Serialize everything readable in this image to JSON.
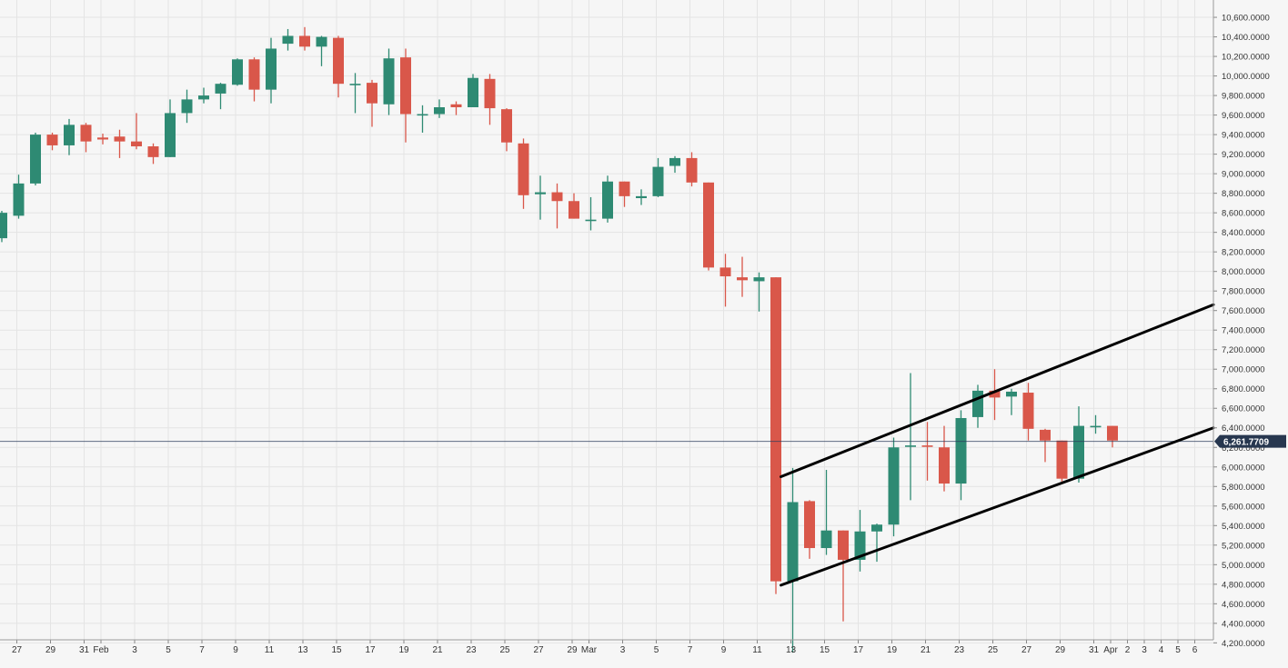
{
  "colors": {
    "background": "#f6f6f6",
    "grid": "#e4e4e4",
    "axis_text": "#333333",
    "up": "#2e8a73",
    "down": "#d9574a",
    "price_line": "#2c3e5c",
    "price_label_bg": "#27374f",
    "price_label_text": "#ffffff",
    "trendline": "#000000"
  },
  "chart_data": {
    "type": "candlestick",
    "y_ticks": [
      "4,200.0000",
      "4,400.0000",
      "4,600.0000",
      "4,800.0000",
      "5,000.0000",
      "5,200.0000",
      "5,400.0000",
      "5,600.0000",
      "5,800.0000",
      "6,000.0000",
      "6,200.0000",
      "6,400.0000",
      "6,600.0000",
      "6,800.0000",
      "7,000.0000",
      "7,200.0000",
      "7,400.0000",
      "7,600.0000",
      "7,800.0000",
      "8,000.0000",
      "8,200.0000",
      "8,400.0000",
      "8,600.0000",
      "8,800.0000",
      "9,000.0000",
      "9,200.0000",
      "9,400.0000",
      "9,600.0000",
      "9,800.0000",
      "10,000.0000",
      "10,200.0000",
      "10,400.0000",
      "10,600.0000"
    ],
    "ylim": [
      4180,
      10740
    ],
    "y_tick_values": [
      4200,
      4400,
      4600,
      4800,
      5000,
      5200,
      5400,
      5600,
      5800,
      6000,
      6200,
      6400,
      6600,
      6800,
      7000,
      7200,
      7400,
      7600,
      7800,
      8000,
      8200,
      8400,
      8600,
      8800,
      9000,
      9200,
      9400,
      9600,
      9800,
      10000,
      10200,
      10400,
      10600
    ],
    "x_labels": [
      "27",
      "29",
      "31",
      "Feb",
      "3",
      "5",
      "7",
      "9",
      "11",
      "13",
      "15",
      "17",
      "19",
      "21",
      "23",
      "25",
      "27",
      "29",
      "Mar",
      "3",
      "5",
      "7",
      "9",
      "11",
      "13",
      "15",
      "17",
      "19",
      "21",
      "23",
      "25",
      "27",
      "29",
      "31",
      "Apr",
      "2",
      "3",
      "4",
      "5",
      "6"
    ],
    "x_label_slots": [
      0,
      2,
      4,
      5,
      7,
      9,
      11,
      13,
      15,
      17,
      19,
      21,
      23,
      25,
      27,
      29,
      31,
      33,
      34,
      36,
      38,
      40,
      42,
      44,
      46,
      48,
      50,
      52,
      54,
      56,
      58,
      60,
      62,
      64,
      65,
      66,
      67,
      68,
      69,
      70
    ],
    "current_price": 6261.7709,
    "current_price_label": "6,261.7709",
    "candles": [
      {
        "o": 8340,
        "h": 8620,
        "l": 8300,
        "c": 8600
      },
      {
        "o": 8570,
        "h": 8990,
        "l": 8540,
        "c": 8900
      },
      {
        "o": 8900,
        "h": 9420,
        "l": 8880,
        "c": 9400
      },
      {
        "o": 9400,
        "h": 9420,
        "l": 9240,
        "c": 9290
      },
      {
        "o": 9290,
        "h": 9560,
        "l": 9190,
        "c": 9500
      },
      {
        "o": 9500,
        "h": 9520,
        "l": 9220,
        "c": 9330
      },
      {
        "o": 9370,
        "h": 9410,
        "l": 9300,
        "c": 9350
      },
      {
        "o": 9380,
        "h": 9450,
        "l": 9160,
        "c": 9330
      },
      {
        "o": 9330,
        "h": 9620,
        "l": 9250,
        "c": 9280
      },
      {
        "o": 9280,
        "h": 9310,
        "l": 9100,
        "c": 9170
      },
      {
        "o": 9170,
        "h": 9760,
        "l": 9170,
        "c": 9620
      },
      {
        "o": 9620,
        "h": 9860,
        "l": 9520,
        "c": 9760
      },
      {
        "o": 9760,
        "h": 9880,
        "l": 9720,
        "c": 9800
      },
      {
        "o": 9820,
        "h": 9930,
        "l": 9660,
        "c": 9920
      },
      {
        "o": 9910,
        "h": 10180,
        "l": 9900,
        "c": 10170
      },
      {
        "o": 10170,
        "h": 10190,
        "l": 9740,
        "c": 9860
      },
      {
        "o": 9860,
        "h": 10390,
        "l": 9720,
        "c": 10280
      },
      {
        "o": 10330,
        "h": 10480,
        "l": 10260,
        "c": 10410
      },
      {
        "o": 10410,
        "h": 10500,
        "l": 10260,
        "c": 10300
      },
      {
        "o": 10300,
        "h": 10410,
        "l": 10100,
        "c": 10400
      },
      {
        "o": 10390,
        "h": 10410,
        "l": 9780,
        "c": 9920
      },
      {
        "o": 9920,
        "h": 10030,
        "l": 9620,
        "c": 9920
      },
      {
        "o": 9930,
        "h": 9960,
        "l": 9480,
        "c": 9720
      },
      {
        "o": 9710,
        "h": 10280,
        "l": 9600,
        "c": 10180
      },
      {
        "o": 10190,
        "h": 10280,
        "l": 9320,
        "c": 9610
      },
      {
        "o": 9610,
        "h": 9700,
        "l": 9420,
        "c": 9610
      },
      {
        "o": 9610,
        "h": 9760,
        "l": 9570,
        "c": 9680
      },
      {
        "o": 9710,
        "h": 9740,
        "l": 9600,
        "c": 9680
      },
      {
        "o": 9680,
        "h": 10020,
        "l": 9680,
        "c": 9980
      },
      {
        "o": 9970,
        "h": 10020,
        "l": 9500,
        "c": 9670
      },
      {
        "o": 9660,
        "h": 9670,
        "l": 9230,
        "c": 9320
      },
      {
        "o": 9310,
        "h": 9360,
        "l": 8640,
        "c": 8780
      },
      {
        "o": 8790,
        "h": 8980,
        "l": 8530,
        "c": 8810
      },
      {
        "o": 8810,
        "h": 8900,
        "l": 8440,
        "c": 8720
      },
      {
        "o": 8720,
        "h": 8800,
        "l": 8540,
        "c": 8540
      },
      {
        "o": 8530,
        "h": 8760,
        "l": 8420,
        "c": 8530
      },
      {
        "o": 8540,
        "h": 8980,
        "l": 8500,
        "c": 8920
      },
      {
        "o": 8920,
        "h": 8920,
        "l": 8660,
        "c": 8770
      },
      {
        "o": 8750,
        "h": 8840,
        "l": 8680,
        "c": 8770
      },
      {
        "o": 8770,
        "h": 9160,
        "l": 8760,
        "c": 9070
      },
      {
        "o": 9080,
        "h": 9180,
        "l": 9010,
        "c": 9160
      },
      {
        "o": 9160,
        "h": 9220,
        "l": 8870,
        "c": 8910
      },
      {
        "o": 8910,
        "h": 8910,
        "l": 8010,
        "c": 8040
      },
      {
        "o": 8040,
        "h": 8180,
        "l": 7640,
        "c": 7950
      },
      {
        "o": 7940,
        "h": 8150,
        "l": 7740,
        "c": 7910
      },
      {
        "o": 7900,
        "h": 7990,
        "l": 7590,
        "c": 7940
      },
      {
        "o": 7940,
        "h": 7940,
        "l": 4700,
        "c": 4830
      },
      {
        "o": 4830,
        "h": 5990,
        "l": 4100,
        "c": 5640
      },
      {
        "o": 5650,
        "h": 5660,
        "l": 5060,
        "c": 5170
      },
      {
        "o": 5170,
        "h": 5970,
        "l": 5100,
        "c": 5350
      },
      {
        "o": 5350,
        "h": 5350,
        "l": 4420,
        "c": 5050
      },
      {
        "o": 5050,
        "h": 5560,
        "l": 4930,
        "c": 5340
      },
      {
        "o": 5340,
        "h": 5420,
        "l": 5030,
        "c": 5410
      },
      {
        "o": 5410,
        "h": 6300,
        "l": 5290,
        "c": 6200
      },
      {
        "o": 6210,
        "h": 6960,
        "l": 5660,
        "c": 6220
      },
      {
        "o": 6220,
        "h": 6460,
        "l": 5860,
        "c": 6210
      },
      {
        "o": 6200,
        "h": 6420,
        "l": 5750,
        "c": 5830
      },
      {
        "o": 5830,
        "h": 6580,
        "l": 5660,
        "c": 6500
      },
      {
        "o": 6510,
        "h": 6840,
        "l": 6400,
        "c": 6780
      },
      {
        "o": 6780,
        "h": 7000,
        "l": 6480,
        "c": 6710
      },
      {
        "o": 6720,
        "h": 6800,
        "l": 6530,
        "c": 6770
      },
      {
        "o": 6760,
        "h": 6860,
        "l": 6270,
        "c": 6390
      },
      {
        "o": 6380,
        "h": 6390,
        "l": 6050,
        "c": 6270
      },
      {
        "o": 6270,
        "h": 6270,
        "l": 5850,
        "c": 5880
      },
      {
        "o": 5880,
        "h": 6620,
        "l": 5840,
        "c": 6420
      },
      {
        "o": 6420,
        "h": 6530,
        "l": 6340,
        "c": 6420
      },
      {
        "o": 6420,
        "h": 6420,
        "l": 6200,
        "c": 6270
      }
    ],
    "channel_lines": [
      {
        "from_slot": 46.3,
        "from_price": 5900,
        "to_slot": 72.0,
        "to_price": 7660
      },
      {
        "from_slot": 46.3,
        "from_price": 4790,
        "to_slot": 72.0,
        "to_price": 6400
      }
    ]
  }
}
